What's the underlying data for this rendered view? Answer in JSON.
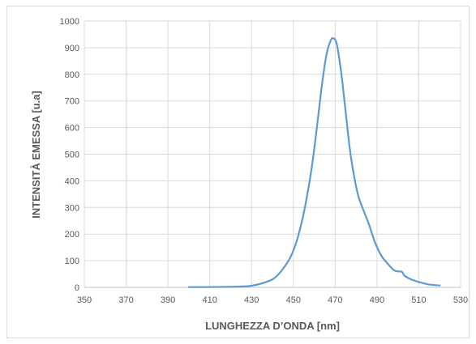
{
  "chart_data": {
    "type": "line",
    "title": "",
    "xlabel": "LUNGHEZZA D’ONDA [nm]",
    "ylabel": "INTENSITÀ EMESSA [u.a]",
    "xlim": [
      350,
      530
    ],
    "ylim": [
      0,
      1000
    ],
    "xticks": [
      350,
      370,
      390,
      410,
      430,
      450,
      470,
      490,
      510,
      530
    ],
    "yticks": [
      0,
      100,
      200,
      300,
      400,
      500,
      600,
      700,
      800,
      900,
      1000
    ],
    "grid": true,
    "legend": "none",
    "series": [
      {
        "color": "#5b9bd5",
        "x": [
          400,
          410,
          420,
          425,
          430,
          435,
          440,
          443,
          446,
          449,
          452,
          455,
          458,
          460,
          462,
          464,
          466,
          468,
          469,
          470,
          471,
          473,
          475,
          477,
          479,
          481,
          483,
          486,
          489,
          492,
          495,
          498,
          500,
          502,
          503,
          505,
          508,
          511,
          514,
          517,
          520
        ],
        "y": [
          1,
          1,
          2,
          3,
          6,
          15,
          30,
          50,
          80,
          120,
          185,
          280,
          410,
          520,
          650,
          780,
          880,
          930,
          935,
          930,
          905,
          800,
          660,
          520,
          420,
          345,
          300,
          240,
          170,
          120,
          90,
          65,
          60,
          58,
          45,
          35,
          25,
          18,
          12,
          9,
          7
        ]
      }
    ]
  }
}
